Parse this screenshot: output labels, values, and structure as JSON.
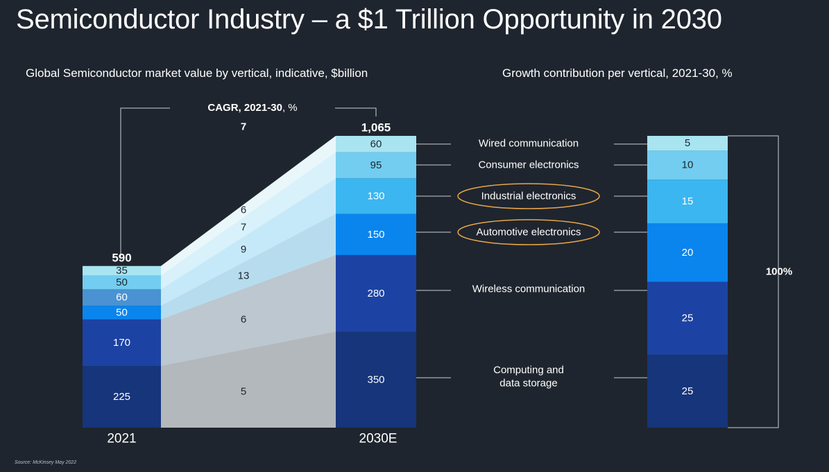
{
  "title": "Semiconductor Industry – a $1 Trillion Opportunity in 2030",
  "source": "Source: McKinsey May 2022",
  "chart_data": [
    {
      "type": "bar",
      "subtitle": "Global Semiconductor market value by vertical, indicative, $billion",
      "categories": [
        "2021",
        "2030E"
      ],
      "totals": [
        "590",
        "1,065"
      ],
      "cagr_header_bold": "CAGR, 2021-30",
      "cagr_header_rest": ", %",
      "cagr_total": "7",
      "stack_order_bottom_up": [
        "Computing and data storage",
        "Wireless communication",
        "Automotive electronics",
        "Industrial electronics",
        "Consumer electronics",
        "Wired communication"
      ],
      "series": [
        {
          "name": "Computing and data storage",
          "values": [
            225,
            350
          ],
          "cagr": "5",
          "color": "#16357a"
        },
        {
          "name": "Wireless communication",
          "values": [
            170,
            280
          ],
          "cagr": "6",
          "color": "#1c43a3"
        },
        {
          "name": "Automotive electronics",
          "values": [
            50,
            150
          ],
          "cagr": "13",
          "color": "#0a85ee",
          "color_2021": "#0a85ee"
        },
        {
          "name": "Industrial electronics",
          "values": [
            60,
            130
          ],
          "cagr": "9",
          "color": "#3bb6f0",
          "color_2021": "#4a92d2"
        },
        {
          "name": "Consumer electronics",
          "values": [
            50,
            95
          ],
          "cagr": "7",
          "color": "#72cdf0"
        },
        {
          "name": "Wired communication",
          "values": [
            35,
            60
          ],
          "cagr": "6",
          "color": "#a9e4f1"
        }
      ],
      "ylim": [
        0,
        1065
      ]
    },
    {
      "type": "bar",
      "subtitle": "Growth contribution per vertical, 2021-30, %",
      "categories": [
        "Growth contribution"
      ],
      "total_label": "100%",
      "series": [
        {
          "name": "Computing and data storage",
          "values": [
            25
          ],
          "color": "#16357a"
        },
        {
          "name": "Wireless communication",
          "values": [
            25
          ],
          "color": "#1c43a3"
        },
        {
          "name": "Automotive electronics",
          "values": [
            20
          ],
          "color": "#0a85ee"
        },
        {
          "name": "Industrial electronics",
          "values": [
            15
          ],
          "color": "#3bb6f0"
        },
        {
          "name": "Consumer electronics",
          "values": [
            10
          ],
          "color": "#72cdf0"
        },
        {
          "name": "Wired communication",
          "values": [
            5
          ],
          "color": "#a9e4f1"
        }
      ],
      "ylim": [
        0,
        100
      ]
    }
  ],
  "legend_labels": [
    {
      "name": "Wired communication",
      "lines": [
        "Wired communication"
      ],
      "highlight": false
    },
    {
      "name": "Consumer electronics",
      "lines": [
        "Consumer electronics"
      ],
      "highlight": false
    },
    {
      "name": "Industrial electronics",
      "lines": [
        "Industrial electronics"
      ],
      "highlight": true
    },
    {
      "name": "Automotive electronics",
      "lines": [
        "Automotive electronics"
      ],
      "highlight": true
    },
    {
      "name": "Wireless communication",
      "lines": [
        "Wireless communication"
      ],
      "highlight": false
    },
    {
      "name": "Computing and data storage",
      "lines": [
        "Computing and",
        "data storage"
      ],
      "highlight": false
    }
  ],
  "highlight_color": "#e9a64a",
  "band_colors": [
    "#b3b8bd",
    "#bcc7cf",
    "#b7dcee",
    "#c6e9f9",
    "#d8f1fa",
    "#e9f7fb"
  ]
}
